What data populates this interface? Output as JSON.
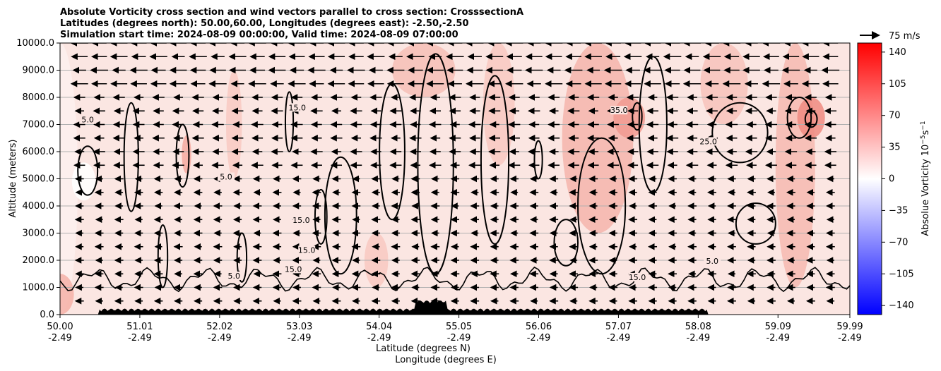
{
  "chart_data": {
    "type": "contour",
    "title_lines": [
      "Absolute Vorticity cross section and wind vectors parallel to cross section: CrosssectionA",
      "Latitudes (degrees north): 50.00,60.00, Longitudes (degrees east): -2.50,-2.50",
      "Simulation start time: 2024-08-09 00:00:00, Valid time: 2024-08-09 07:00:00"
    ],
    "ylabel": "Altitude (meters)",
    "xlabel_lines": [
      "Latitude (degrees N)",
      "Longitude (degrees E)"
    ],
    "ylim": [
      0,
      10000
    ],
    "yticks": [
      "0.0",
      "1000.0",
      "2000.0",
      "3000.0",
      "4000.0",
      "5000.0",
      "6000.0",
      "7000.0",
      "8000.0",
      "9000.0",
      "10000.0"
    ],
    "xticks_lat": [
      "50.00",
      "51.01",
      "52.02",
      "53.03",
      "54.04",
      "55.05",
      "56.06",
      "57.07",
      "58.08",
      "59.09",
      "59.99"
    ],
    "xticks_lon": [
      "-2.49",
      "-2.49",
      "-2.49",
      "-2.49",
      "-2.49",
      "-2.49",
      "-2.49",
      "-2.49",
      "-2.49",
      "-2.49",
      "-2.49"
    ],
    "xlim": [
      50.0,
      59.99
    ],
    "grid": "horizontal",
    "contour_levels_shown": [
      "5.0",
      "15.0",
      "25.0",
      "35.0"
    ],
    "contour_label_samples": [
      {
        "text": "5.0",
        "lat": 50.35,
        "alt": 7100
      },
      {
        "text": "15.0",
        "lat": 53.0,
        "alt": 7550
      },
      {
        "text": "5.0",
        "lat": 52.1,
        "alt": 5000
      },
      {
        "text": "15.0",
        "lat": 53.05,
        "alt": 3400
      },
      {
        "text": "15.0",
        "lat": 53.12,
        "alt": 2300
      },
      {
        "text": "15.0",
        "lat": 52.95,
        "alt": 1600
      },
      {
        "text": "5.0",
        "lat": 52.2,
        "alt": 1350
      },
      {
        "text": "25.0",
        "lat": 58.2,
        "alt": 6300
      },
      {
        "text": "35.0",
        "lat": 57.07,
        "alt": 7450
      },
      {
        "text": "5.0",
        "lat": 58.25,
        "alt": 1900
      },
      {
        "text": "15.0",
        "lat": 57.3,
        "alt": 1300
      }
    ],
    "colorbar": {
      "label": "Absolue Vorticity 10$^{-5}$s$^{-1}$",
      "label_text": "Absolue Vorticity 10",
      "label_exp": "−5",
      "label_unit": "s",
      "label_unit_exp": "−1",
      "range": [
        -150,
        150
      ],
      "ticks": [
        "140",
        "105",
        "70",
        "35",
        "0",
        "−35",
        "−70",
        "−105",
        "−140"
      ],
      "tick_values": [
        140,
        105,
        70,
        35,
        0,
        -35,
        -70,
        -105,
        -140
      ],
      "colormap": "bwr",
      "colors": {
        "low": "#0000ff",
        "mid": "#ffffff",
        "high": "#ff0000"
      }
    },
    "quiver_key": {
      "label": "75 m/s"
    },
    "field_summary": "mostly weak positive vorticity (0–35) throughout column with stronger positive cores near 57.07N and 59.3N aloft; wind vectors pointing southward aloft"
  }
}
